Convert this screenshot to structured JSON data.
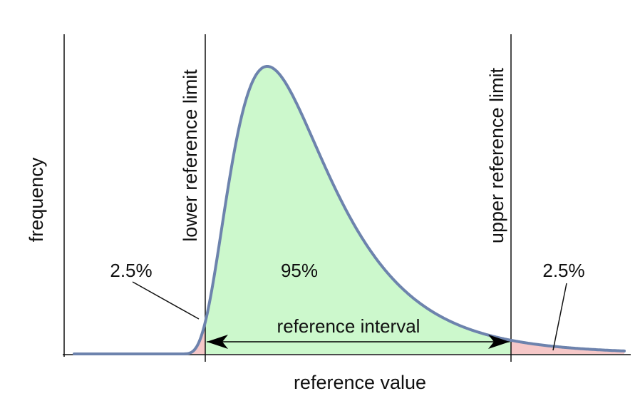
{
  "diagram": {
    "axes": {
      "y_label": "frequency",
      "x_label": "reference value"
    },
    "limits": {
      "lower_label": "lower reference limit",
      "upper_label": "upper reference limit"
    },
    "regions": {
      "left_tail_percent": "2.5%",
      "center_percent": "95%",
      "right_tail_percent": "2.5%"
    },
    "interval_label": "reference interval",
    "colors": {
      "curve": "#6d83ad",
      "center_fill": "#ccf8cc",
      "tail_fill": "#f6c8c8",
      "lines": "#111111"
    }
  }
}
